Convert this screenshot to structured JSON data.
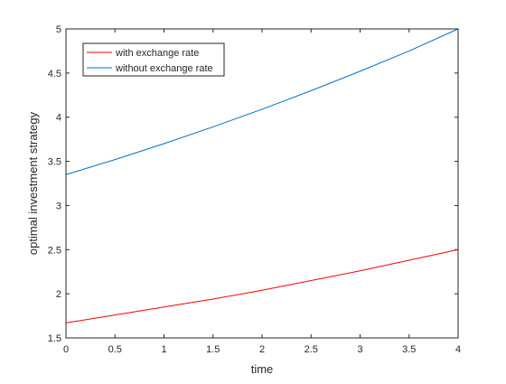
{
  "chart_data": {
    "type": "line",
    "title": "",
    "xlabel": "time",
    "ylabel": "optimal investment strategy",
    "xlim": [
      0,
      4
    ],
    "ylim": [
      1.5,
      5
    ],
    "xticks": [
      0,
      0.5,
      1,
      1.5,
      2,
      2.5,
      3,
      3.5,
      4
    ],
    "xtick_labels": [
      "0",
      "0.5",
      "1",
      "1.5",
      "2",
      "2.5",
      "3",
      "3.5",
      "4"
    ],
    "yticks": [
      1.5,
      2,
      2.5,
      3,
      3.5,
      4,
      4.5,
      5
    ],
    "ytick_labels": [
      "1.5",
      "2",
      "2.5",
      "3",
      "3.5",
      "4",
      "4.5",
      "5"
    ],
    "grid": false,
    "legend_position": "top-left",
    "series": [
      {
        "name": "with exchange rate",
        "color": "#ff0000",
        "x": [
          0,
          0.5,
          1,
          1.5,
          2,
          2.5,
          3,
          3.5,
          4
        ],
        "y": [
          1.67,
          1.76,
          1.85,
          1.94,
          2.04,
          2.15,
          2.26,
          2.38,
          2.5
        ]
      },
      {
        "name": "without exchange rate",
        "color": "#0072bd",
        "x": [
          0,
          0.5,
          1,
          1.5,
          2,
          2.5,
          3,
          3.5,
          4
        ],
        "y": [
          3.35,
          3.52,
          3.7,
          3.89,
          4.09,
          4.3,
          4.52,
          4.75,
          5.0
        ]
      }
    ]
  }
}
